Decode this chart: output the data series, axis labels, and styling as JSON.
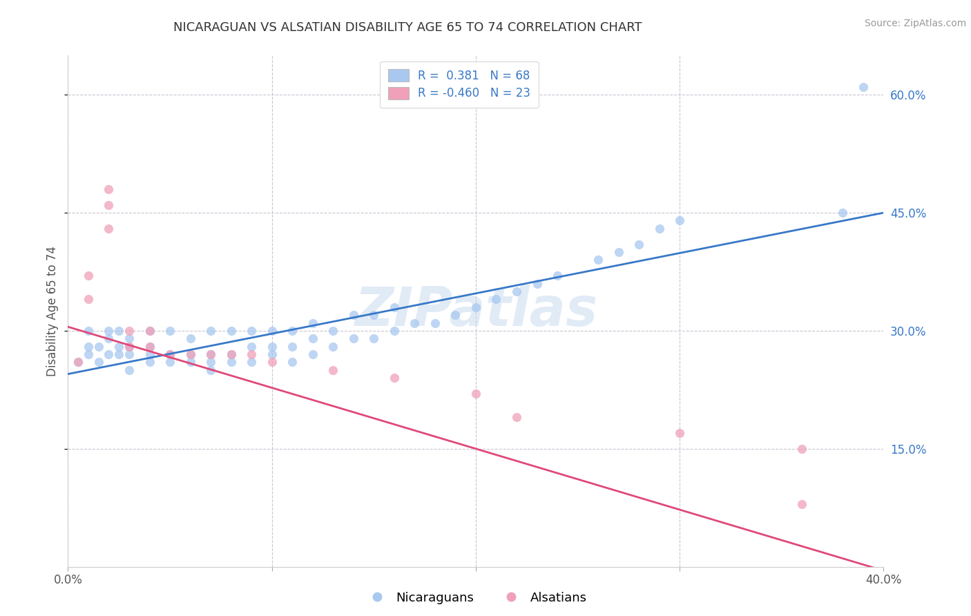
{
  "title": "NICARAGUAN VS ALSATIAN DISABILITY AGE 65 TO 74 CORRELATION CHART",
  "source": "Source: ZipAtlas.com",
  "ylabel": "Disability Age 65 to 74",
  "watermark": "ZIPatlas",
  "legend_blue_r": "R =  0.381",
  "legend_blue_n": "N = 68",
  "legend_pink_r": "R = -0.460",
  "legend_pink_n": "N = 23",
  "legend_label_blue": "Nicaraguans",
  "legend_label_pink": "Alsatians",
  "xmin": 0.0,
  "xmax": 0.4,
  "ymin": 0.0,
  "ymax": 0.65,
  "right_yticks": [
    0.15,
    0.3,
    0.45,
    0.6
  ],
  "right_ytick_labels": [
    "15.0%",
    "30.0%",
    "45.0%",
    "60.0%"
  ],
  "xticks": [
    0.0,
    0.1,
    0.2,
    0.3,
    0.4
  ],
  "xtick_labels": [
    "0.0%",
    "",
    "",
    "",
    "40.0%"
  ],
  "color_blue_fill": "#A8C8F0",
  "color_pink_fill": "#F0A0B8",
  "color_line_blue": "#3878C8",
  "color_line_pink": "#E04878",
  "background_color": "#FFFFFF",
  "grid_color": "#C0C0D0",
  "blue_scatter_x": [
    0.005,
    0.01,
    0.01,
    0.01,
    0.015,
    0.015,
    0.02,
    0.02,
    0.02,
    0.025,
    0.025,
    0.025,
    0.03,
    0.03,
    0.03,
    0.03,
    0.04,
    0.04,
    0.04,
    0.04,
    0.05,
    0.05,
    0.05,
    0.06,
    0.06,
    0.06,
    0.07,
    0.07,
    0.07,
    0.07,
    0.08,
    0.08,
    0.08,
    0.09,
    0.09,
    0.09,
    0.1,
    0.1,
    0.1,
    0.11,
    0.11,
    0.11,
    0.12,
    0.12,
    0.12,
    0.13,
    0.13,
    0.14,
    0.14,
    0.15,
    0.15,
    0.16,
    0.16,
    0.17,
    0.18,
    0.19,
    0.2,
    0.21,
    0.22,
    0.23,
    0.24,
    0.26,
    0.27,
    0.28,
    0.29,
    0.3,
    0.38,
    0.39
  ],
  "blue_scatter_y": [
    0.26,
    0.27,
    0.28,
    0.3,
    0.26,
    0.28,
    0.27,
    0.29,
    0.3,
    0.27,
    0.28,
    0.3,
    0.25,
    0.27,
    0.28,
    0.29,
    0.26,
    0.27,
    0.28,
    0.3,
    0.26,
    0.27,
    0.3,
    0.26,
    0.27,
    0.29,
    0.25,
    0.26,
    0.27,
    0.3,
    0.26,
    0.27,
    0.3,
    0.26,
    0.28,
    0.3,
    0.27,
    0.28,
    0.3,
    0.26,
    0.28,
    0.3,
    0.27,
    0.29,
    0.31,
    0.28,
    0.3,
    0.29,
    0.32,
    0.29,
    0.32,
    0.3,
    0.33,
    0.31,
    0.31,
    0.32,
    0.33,
    0.34,
    0.35,
    0.36,
    0.37,
    0.39,
    0.4,
    0.41,
    0.43,
    0.44,
    0.45,
    0.61
  ],
  "pink_scatter_x": [
    0.005,
    0.01,
    0.01,
    0.02,
    0.02,
    0.02,
    0.03,
    0.03,
    0.04,
    0.04,
    0.05,
    0.06,
    0.07,
    0.08,
    0.09,
    0.1,
    0.13,
    0.16,
    0.2,
    0.22,
    0.3,
    0.36,
    0.36
  ],
  "pink_scatter_y": [
    0.26,
    0.34,
    0.37,
    0.43,
    0.46,
    0.48,
    0.28,
    0.3,
    0.28,
    0.3,
    0.27,
    0.27,
    0.27,
    0.27,
    0.27,
    0.26,
    0.25,
    0.24,
    0.22,
    0.19,
    0.17,
    0.15,
    0.08
  ],
  "blue_line_x": [
    0.0,
    0.4
  ],
  "blue_line_y": [
    0.245,
    0.45
  ],
  "pink_line_x": [
    0.0,
    0.4
  ],
  "pink_line_y": [
    0.305,
    -0.005
  ]
}
